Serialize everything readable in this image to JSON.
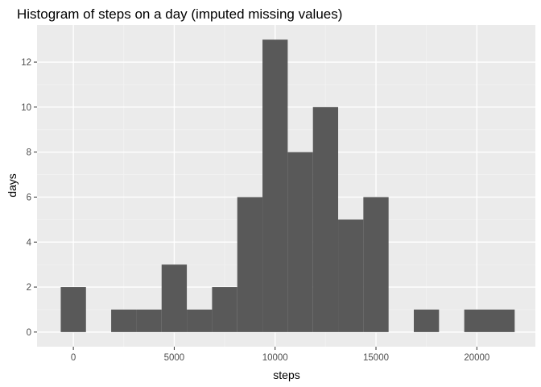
{
  "chart_data": {
    "type": "bar",
    "title": "Histogram of steps on a day (imputed missing values)",
    "xlabel": "steps",
    "ylabel": "days",
    "xlim": [
      -1800,
      22900
    ],
    "ylim": [
      -0.65,
      13.65
    ],
    "x_ticks": [
      0,
      5000,
      10000,
      15000,
      20000
    ],
    "x_tick_labels": [
      "0",
      "5000",
      "10000",
      "15000",
      "20000"
    ],
    "y_ticks": [
      0,
      2,
      4,
      6,
      8,
      10,
      12
    ],
    "y_tick_labels": [
      "0",
      "2",
      "4",
      "6",
      "8",
      "10",
      "12"
    ],
    "grid": true,
    "bin_width": 1250,
    "bins": [
      {
        "x0": -625,
        "x1": 625,
        "count": 2
      },
      {
        "x0": 625,
        "x1": 1875,
        "count": 0
      },
      {
        "x0": 1875,
        "x1": 3125,
        "count": 1
      },
      {
        "x0": 3125,
        "x1": 4375,
        "count": 1
      },
      {
        "x0": 4375,
        "x1": 5625,
        "count": 3
      },
      {
        "x0": 5625,
        "x1": 6875,
        "count": 1
      },
      {
        "x0": 6875,
        "x1": 8125,
        "count": 2
      },
      {
        "x0": 8125,
        "x1": 9375,
        "count": 6
      },
      {
        "x0": 9375,
        "x1": 10625,
        "count": 13
      },
      {
        "x0": 10625,
        "x1": 11875,
        "count": 8
      },
      {
        "x0": 11875,
        "x1": 13125,
        "count": 10
      },
      {
        "x0": 13125,
        "x1": 14375,
        "count": 5
      },
      {
        "x0": 14375,
        "x1": 15625,
        "count": 6
      },
      {
        "x0": 15625,
        "x1": 16875,
        "count": 0
      },
      {
        "x0": 16875,
        "x1": 18125,
        "count": 1
      },
      {
        "x0": 18125,
        "x1": 19375,
        "count": 0
      },
      {
        "x0": 19375,
        "x1": 20625,
        "count": 1
      },
      {
        "x0": 20625,
        "x1": 21875,
        "count": 1
      }
    ],
    "colors": {
      "bar": "#595959",
      "panel": "#ebebeb",
      "grid_major": "#ffffff",
      "grid_minor": "#f2f2f2",
      "tick": "#333333"
    }
  }
}
